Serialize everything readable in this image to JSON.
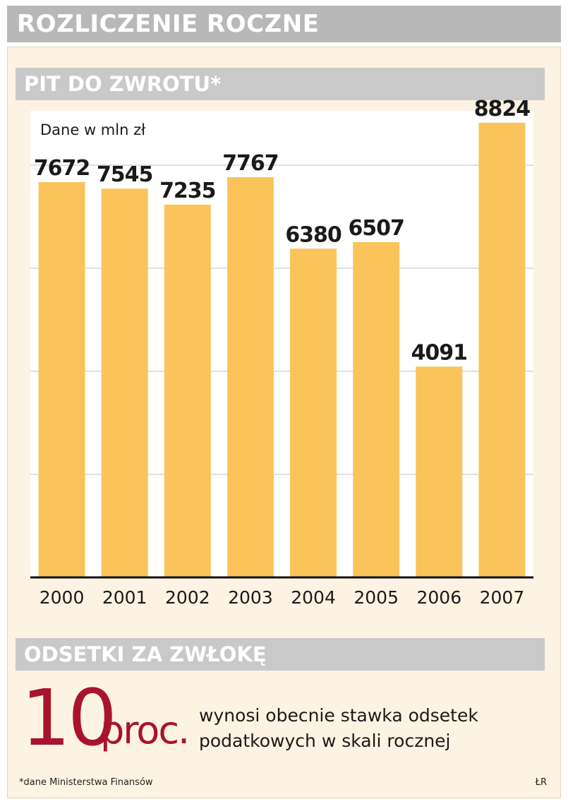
{
  "header": {
    "title": "ROZLICZENIE ROCZNE"
  },
  "sections": {
    "pit_title": "PIT DO ZWROTU*",
    "odsetki_title": "ODSETKI ZA ZWŁOKĘ"
  },
  "chart_data": {
    "type": "bar",
    "title": "PIT DO ZWROTU*",
    "unit_label": "Dane w mln zł",
    "categories": [
      "2000",
      "2001",
      "2002",
      "2003",
      "2004",
      "2005",
      "2006",
      "2007"
    ],
    "values": [
      7672,
      7545,
      7235,
      7767,
      6380,
      6507,
      4091,
      8824
    ],
    "ylim": [
      0,
      9000
    ],
    "grid": true,
    "bar_color": "#fbc45a",
    "background_color": "#fdf3e2"
  },
  "odsetki": {
    "number": "10",
    "unit": "proc.",
    "description_line1": "wynosi obecnie stawka odsetek",
    "description_line2": "podatkowych w skali rocznej",
    "accent_color": "#a8142c"
  },
  "footer": {
    "footnote": "*dane Ministerstwa Finansów",
    "author": "ŁR"
  }
}
